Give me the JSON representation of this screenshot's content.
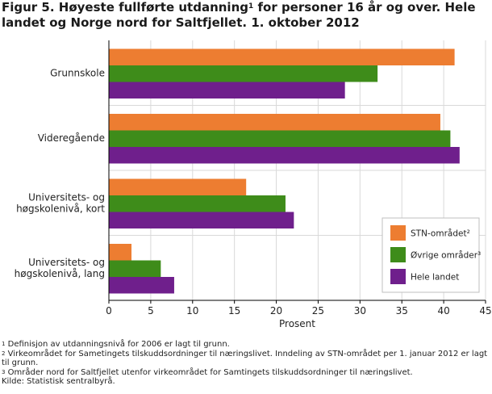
{
  "figure_title": {
    "part1": "Figur 5. Høyeste fullførte utdanning",
    "sup": "1",
    "part2": " for personer 16 år og over. Hele landet og Norge nord for Saltfjellet. 1. oktober 2012"
  },
  "chart_data": {
    "type": "bar",
    "orientation": "horizontal",
    "title": "Figur 5. Høyeste fullførte utdanning¹ for personer 16 år og over. Hele landet og Norge nord for Saltfjellet. 1. oktober 2012",
    "categories": [
      [
        "Grunnskole"
      ],
      [
        "Videregående"
      ],
      [
        "Universitets- og",
        "høgskolenivå, kort"
      ],
      [
        "Universitets- og",
        "høgskolenivå, lang"
      ]
    ],
    "series": [
      {
        "name": "STN-området²",
        "color": "#ed7d31",
        "values": [
          41.3,
          39.6,
          16.4,
          2.7
        ]
      },
      {
        "name": "Øvrige områder³",
        "color": "#3e8c1a",
        "values": [
          32.1,
          40.8,
          21.1,
          6.2
        ]
      },
      {
        "name": "Hele landet",
        "color": "#6f1f8c",
        "values": [
          28.2,
          41.9,
          22.1,
          7.8
        ]
      }
    ],
    "xlabel": "Prosent",
    "ylabel": "",
    "xlim": [
      0,
      45
    ],
    "xticks": [
      0,
      5,
      10,
      15,
      20,
      25,
      30,
      35,
      40,
      45
    ],
    "grid": true,
    "legend_position": "bottom-right"
  },
  "notes": [
    {
      "sup": "1",
      "text": " Definisjon av utdanningsnivå for 2006 er lagt til grunn."
    },
    {
      "sup": "2",
      "text": " Virkeområdet for Sametingets tilskuddsordninger til næringslivet. Inndeling av STN-området per 1. januar 2012 er lagt til grunn."
    },
    {
      "sup": "3",
      "text": " Områder nord for Saltfjellet utenfor  virkeområdet for Samtingets tilskuddsordninger til næringslivet."
    },
    {
      "sup": "",
      "text": "Kilde: Statistisk sentralbyrå."
    }
  ]
}
